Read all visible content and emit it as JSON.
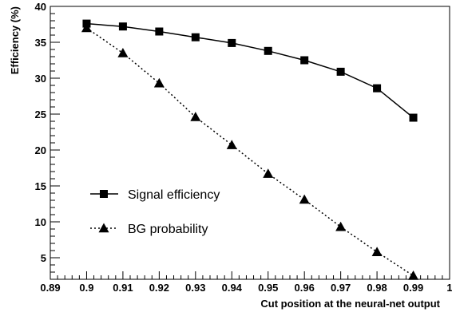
{
  "chart_data": {
    "type": "line",
    "title": "",
    "xlabel": "Cut position at the neural-net output",
    "ylabel": "Efficiency (%)",
    "xlim": [
      0.89,
      1.0
    ],
    "ylim": [
      2,
      40
    ],
    "x_ticks": [
      0.89,
      0.9,
      0.91,
      0.92,
      0.93,
      0.94,
      0.95,
      0.96,
      0.97,
      0.98,
      0.99,
      1.0
    ],
    "x_tick_labels": [
      "0.89",
      "0.9",
      "0.91",
      "0.92",
      "0.93",
      "0.94",
      "0.95",
      "0.96",
      "0.97",
      "0.98",
      "0.99",
      "1"
    ],
    "y_ticks": [
      5,
      10,
      15,
      20,
      25,
      30,
      35,
      40
    ],
    "y_tick_labels": [
      "5",
      "10",
      "15",
      "20",
      "25",
      "30",
      "35",
      "40"
    ],
    "grid": false,
    "legend_position": "bottom-left",
    "x": [
      0.9,
      0.91,
      0.92,
      0.93,
      0.94,
      0.95,
      0.96,
      0.97,
      0.98,
      0.99
    ],
    "series": [
      {
        "name": "Signal efficiency",
        "values": [
          37.6,
          37.2,
          36.5,
          35.7,
          34.9,
          33.8,
          32.5,
          30.9,
          28.6,
          24.5
        ],
        "marker": "square",
        "line": "solid",
        "color": "#000000"
      },
      {
        "name": "BG probability",
        "values": [
          37.0,
          33.5,
          29.3,
          24.6,
          20.7,
          16.7,
          13.1,
          9.3,
          5.8,
          2.5
        ],
        "marker": "triangle",
        "line": "dotted",
        "color": "#000000"
      }
    ]
  }
}
